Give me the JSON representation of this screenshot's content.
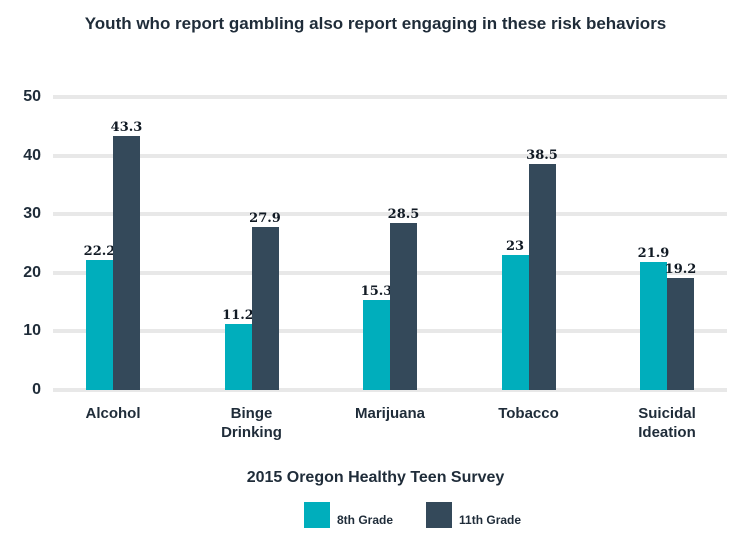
{
  "title": "Youth who report gambling also report engaging in these risk behaviors",
  "subtitle": "2015 Oregon Healthy Teen Survey",
  "colors": {
    "series_8th": "#00aebc",
    "series_11th": "#34495a",
    "gridline": "#e8e8e8",
    "text": "#1f2c39",
    "bar_label": "#111a24",
    "background": "#ffffff"
  },
  "chart_data": {
    "type": "bar",
    "title": "Youth who report gambling also report engaging in these risk behaviors",
    "subtitle": "2015 Oregon Healthy Teen Survey",
    "categories": [
      "Alcohol",
      "Binge\nDrinking",
      "Marijuana",
      "Tobacco",
      "Suicidal\nIdeation"
    ],
    "series": [
      {
        "name": "8th Grade",
        "color": "#00aebc",
        "values": [
          22.2,
          11.2,
          15.3,
          23,
          21.9
        ]
      },
      {
        "name": "11th Grade",
        "color": "#34495a",
        "values": [
          43.3,
          27.9,
          28.5,
          38.5,
          19.2
        ]
      }
    ],
    "xlabel": "",
    "ylabel": "",
    "ylim": [
      0,
      50
    ],
    "yticks": [
      0,
      10,
      20,
      30,
      40,
      50
    ],
    "grid": true,
    "data_labels": true,
    "legend_position": "bottom"
  }
}
